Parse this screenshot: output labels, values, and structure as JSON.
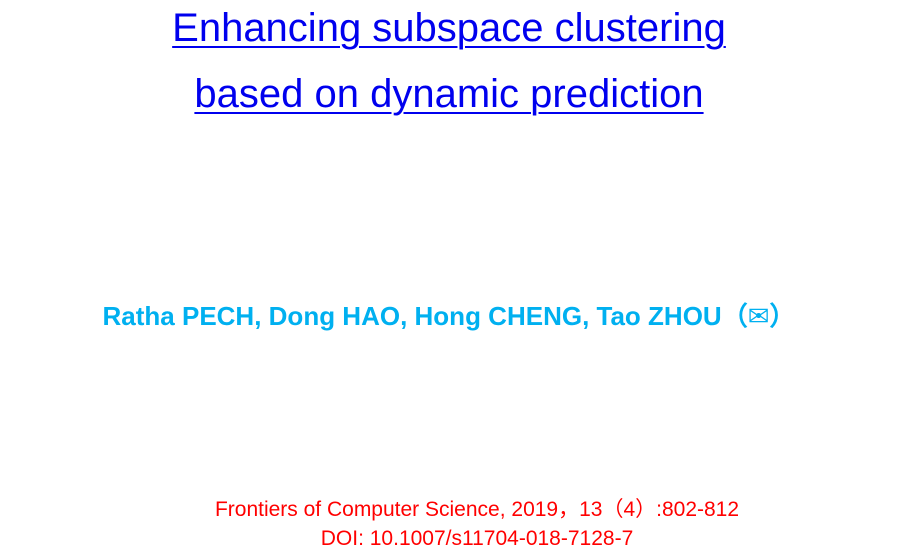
{
  "title": {
    "lines": [
      "Enhancing subspace clustering",
      "based on dynamic prediction"
    ]
  },
  "authors": "Ratha PECH, Dong HAO, Hong CHENG, Tao ZHOU（✉）",
  "citation": {
    "journal": "Frontiers of Computer Science, 2019，13（4）:802-812",
    "doi": "DOI: 10.1007/s11704-018-7128-7"
  }
}
